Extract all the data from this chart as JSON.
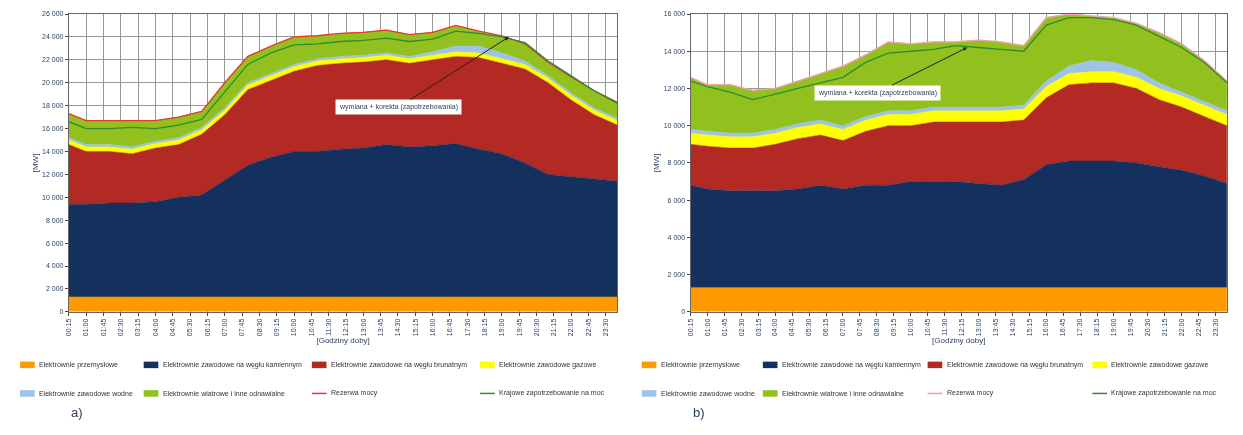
{
  "chart_data": [
    {
      "type": "area",
      "stacked": true,
      "xlabel": "[Godziny doby]",
      "ylabel": "[MW]",
      "grid": true,
      "legend": "bottom",
      "x": [
        0.25,
        1,
        2,
        3,
        4,
        5,
        6,
        7,
        8,
        9,
        10,
        11,
        12,
        13,
        14,
        15,
        16,
        17,
        18,
        19,
        20,
        21,
        22,
        23,
        24
      ],
      "xlim": [
        0.25,
        24
      ],
      "xticks": [
        {
          "value": 0.25,
          "label": "00:15"
        },
        {
          "value": 1,
          "label": "01:00"
        },
        {
          "value": 1.75,
          "label": "01:45"
        },
        {
          "value": 2.5,
          "label": "02:30"
        },
        {
          "value": 3.25,
          "label": "03:15"
        },
        {
          "value": 4,
          "label": "04:00"
        },
        {
          "value": 4.75,
          "label": "04:45"
        },
        {
          "value": 5.5,
          "label": "05:30"
        },
        {
          "value": 6.25,
          "label": "06:15"
        },
        {
          "value": 7,
          "label": "07:00"
        },
        {
          "value": 7.75,
          "label": "07:45"
        },
        {
          "value": 8.5,
          "label": "08:30"
        },
        {
          "value": 9.25,
          "label": "09:15"
        },
        {
          "value": 10,
          "label": "10:00"
        },
        {
          "value": 10.75,
          "label": "10:45"
        },
        {
          "value": 11.5,
          "label": "11:30"
        },
        {
          "value": 12.25,
          "label": "12:15"
        },
        {
          "value": 13,
          "label": "13:00"
        },
        {
          "value": 13.75,
          "label": "13:45"
        },
        {
          "value": 14.5,
          "label": "14:30"
        },
        {
          "value": 15.25,
          "label": "15:15"
        },
        {
          "value": 16,
          "label": "16:00"
        },
        {
          "value": 16.75,
          "label": "16:45"
        },
        {
          "value": 17.5,
          "label": "17:30"
        },
        {
          "value": 18.25,
          "label": "18:15"
        },
        {
          "value": 19,
          "label": "19:00"
        },
        {
          "value": 19.75,
          "label": "19:45"
        },
        {
          "value": 20.5,
          "label": "20:30"
        },
        {
          "value": 21.25,
          "label": "21:15"
        },
        {
          "value": 22,
          "label": "22:00"
        },
        {
          "value": 22.75,
          "label": "22:45"
        },
        {
          "value": 23.5,
          "label": "23:30"
        }
      ],
      "ylim": [
        0,
        26000
      ],
      "yticks": [
        0,
        {
          "value": 2000,
          "label": "2 000"
        },
        {
          "value": 4000,
          "label": "4 000"
        },
        {
          "value": 6000,
          "label": "6 000"
        },
        {
          "value": 8000,
          "label": "8 000"
        },
        {
          "value": 10000,
          "label": "10 000"
        },
        {
          "value": 12000,
          "label": "12 000"
        },
        {
          "value": 14000,
          "label": "14 000"
        },
        {
          "value": 16000,
          "label": "16 000"
        },
        {
          "value": 18000,
          "label": "18 000"
        },
        {
          "value": 20000,
          "label": "20 000"
        },
        {
          "value": 22000,
          "label": "22 000"
        },
        {
          "value": 24000,
          "label": "24 000"
        },
        {
          "value": 26000,
          "label": "26 000"
        }
      ],
      "series": [
        {
          "name": "Elektrownie przemysłowe",
          "color": "#ff9900",
          "values": [
            1300,
            1300,
            1300,
            1300,
            1300,
            1300,
            1300,
            1300,
            1300,
            1300,
            1300,
            1300,
            1300,
            1300,
            1300,
            1300,
            1300,
            1300,
            1300,
            1300,
            1300,
            1300,
            1300,
            1300,
            1300
          ]
        },
        {
          "name": "Elektrownie zawodowe na węglu kamiennym",
          "color": "#14305e",
          "values": [
            8100,
            8100,
            8200,
            8200,
            8300,
            8700,
            8900,
            10200,
            11500,
            12200,
            12700,
            12700,
            12900,
            13000,
            13300,
            13100,
            13200,
            13400,
            12900,
            12500,
            11700,
            10700,
            10500,
            10300,
            10100
          ]
        },
        {
          "name": "Elektrownie zawodowe na węglu brunatnym",
          "color": "#b22a23",
          "values": [
            5200,
            4600,
            4500,
            4300,
            4700,
            4600,
            5300,
            5700,
            6600,
            6700,
            7000,
            7500,
            7500,
            7500,
            7400,
            7300,
            7500,
            7600,
            8000,
            7900,
            8200,
            8000,
            6700,
            5600,
            4900
          ]
        },
        {
          "name": "Elektrownie zawodowe gazowe",
          "color": "#ffff00",
          "values": [
            400,
            400,
            400,
            400,
            400,
            400,
            400,
            400,
            400,
            400,
            400,
            400,
            400,
            400,
            400,
            400,
            400,
            400,
            400,
            400,
            400,
            400,
            400,
            400,
            400
          ]
        },
        {
          "name": "Elektrownie zawodowe wodne",
          "color": "#9dc3e6",
          "values": [
            200,
            200,
            200,
            200,
            200,
            200,
            200,
            200,
            200,
            200,
            200,
            200,
            200,
            200,
            200,
            200,
            300,
            500,
            600,
            500,
            300,
            200,
            200,
            200,
            200
          ]
        },
        {
          "name": "Elektrownie wiatrowe i inne odnawialne",
          "color": "#92c01f",
          "values": [
            2100,
            2100,
            2100,
            2300,
            1800,
            1800,
            1400,
            2200,
            2300,
            2400,
            2400,
            2000,
            2000,
            2000,
            2000,
            1900,
            1700,
            1800,
            1300,
            1400,
            1500,
            1200,
            1400,
            1500,
            1400
          ]
        },
        {
          "name": "Rezerwa mocy",
          "type": "line",
          "color": "#e8382b",
          "values": [
            17300,
            16700,
            16700,
            16700,
            16700,
            17000,
            17500,
            20000,
            22300,
            23200,
            24000,
            24100,
            24300,
            24400,
            24600,
            24200,
            24400,
            25000,
            24500,
            24100,
            23400,
            21800,
            20500,
            19300,
            18300
          ]
        },
        {
          "name": "Krajowe zapotrzebowanie na moc",
          "type": "line",
          "color": "#2e8b2e",
          "values": [
            16600,
            16000,
            16000,
            16100,
            16000,
            16300,
            16800,
            19200,
            21600,
            22600,
            23300,
            23400,
            23600,
            23700,
            23900,
            23600,
            23800,
            24500,
            24300,
            24000,
            23500,
            21900,
            20600,
            19300,
            18200
          ]
        }
      ],
      "annotations": [
        {
          "text": "wymiana + korekta (zapotrzebowania)",
          "x": 19.3,
          "y": 24000
        },
        "a)"
      ]
    },
    {
      "type": "area",
      "stacked": true,
      "xlabel": "[Godziny doby]",
      "ylabel": "[MW]",
      "grid": true,
      "legend": "bottom",
      "x": [
        0.25,
        1,
        2,
        3,
        4,
        5,
        6,
        7,
        8,
        9,
        10,
        11,
        12,
        13,
        14,
        15,
        16,
        17,
        18,
        19,
        20,
        21,
        22,
        23,
        24
      ],
      "xlim": [
        0.25,
        24
      ],
      "xticks": [
        {
          "value": 0.25,
          "label": "00:15"
        },
        {
          "value": 1,
          "label": "01:00"
        },
        {
          "value": 1.75,
          "label": "01:45"
        },
        {
          "value": 2.5,
          "label": "02:30"
        },
        {
          "value": 3.25,
          "label": "03:15"
        },
        {
          "value": 4,
          "label": "04:00"
        },
        {
          "value": 4.75,
          "label": "04:45"
        },
        {
          "value": 5.5,
          "label": "05:30"
        },
        {
          "value": 6.25,
          "label": "06:15"
        },
        {
          "value": 7,
          "label": "07:00"
        },
        {
          "value": 7.75,
          "label": "07:45"
        },
        {
          "value": 8.5,
          "label": "08:30"
        },
        {
          "value": 9.25,
          "label": "09:15"
        },
        {
          "value": 10,
          "label": "10:00"
        },
        {
          "value": 10.75,
          "label": "10:45"
        },
        {
          "value": 11.5,
          "label": "11:30"
        },
        {
          "value": 12.25,
          "label": "12:15"
        },
        {
          "value": 13,
          "label": "13:00"
        },
        {
          "value": 13.75,
          "label": "13:45"
        },
        {
          "value": 14.5,
          "label": "14:30"
        },
        {
          "value": 15.25,
          "label": "15:15"
        },
        {
          "value": 16,
          "label": "16:00"
        },
        {
          "value": 16.75,
          "label": "16:45"
        },
        {
          "value": 17.5,
          "label": "17:30"
        },
        {
          "value": 18.25,
          "label": "18:15"
        },
        {
          "value": 19,
          "label": "19:00"
        },
        {
          "value": 19.75,
          "label": "19:45"
        },
        {
          "value": 20.5,
          "label": "20:30"
        },
        {
          "value": 21.25,
          "label": "21:15"
        },
        {
          "value": 22,
          "label": "22:00"
        },
        {
          "value": 22.75,
          "label": "22:45"
        },
        {
          "value": 23.5,
          "label": "23:30"
        }
      ],
      "ylim": [
        0,
        16000
      ],
      "yticks": [
        0,
        {
          "value": 2000,
          "label": "2 000"
        },
        {
          "value": 4000,
          "label": "4 000"
        },
        {
          "value": 6000,
          "label": "6 000"
        },
        {
          "value": 8000,
          "label": "8 000"
        },
        {
          "value": 10000,
          "label": "10 000"
        },
        {
          "value": 12000,
          "label": "12 000"
        },
        {
          "value": 14000,
          "label": "14 000"
        },
        {
          "value": 16000,
          "label": "16 000"
        }
      ],
      "series": [
        {
          "name": "Elektrownie przemysłowe",
          "color": "#ff9900",
          "values": [
            1300,
            1300,
            1300,
            1300,
            1300,
            1300,
            1300,
            1300,
            1300,
            1300,
            1300,
            1300,
            1300,
            1300,
            1300,
            1300,
            1300,
            1300,
            1300,
            1300,
            1300,
            1300,
            1300,
            1300,
            1300
          ]
        },
        {
          "name": "Elektrownie zawodowe na węglu kamiennym",
          "color": "#14305e",
          "values": [
            5500,
            5300,
            5200,
            5200,
            5200,
            5300,
            5500,
            5300,
            5500,
            5500,
            5700,
            5700,
            5700,
            5600,
            5500,
            5800,
            6600,
            6800,
            6800,
            6800,
            6700,
            6500,
            6300,
            6000,
            5600
          ]
        },
        {
          "name": "Elektrownie zawodowe na węglu brunatnym",
          "color": "#b22a23",
          "values": [
            2200,
            2300,
            2300,
            2300,
            2500,
            2700,
            2700,
            2600,
            2900,
            3200,
            3000,
            3200,
            3200,
            3300,
            3400,
            3200,
            3600,
            4100,
            4200,
            4200,
            4000,
            3600,
            3400,
            3200,
            3100
          ]
        },
        {
          "name": "Elektrownie zawodowe gazowe",
          "color": "#ffff00",
          "values": [
            600,
            600,
            600,
            600,
            600,
            600,
            600,
            600,
            600,
            600,
            600,
            600,
            600,
            600,
            600,
            600,
            600,
            600,
            600,
            600,
            600,
            600,
            600,
            600,
            600
          ]
        },
        {
          "name": "Elektrownie zawodowe wodne",
          "color": "#9dc3e6",
          "values": [
            200,
            200,
            200,
            200,
            200,
            200,
            200,
            200,
            200,
            200,
            200,
            200,
            200,
            200,
            200,
            200,
            300,
            400,
            600,
            500,
            400,
            300,
            200,
            200,
            200
          ]
        },
        {
          "name": "Elektrownie wiatrowe i inne odnawialne",
          "color": "#92c01f",
          "values": [
            2800,
            2500,
            2600,
            2300,
            2200,
            2300,
            2500,
            3200,
            3300,
            3700,
            3600,
            3500,
            3500,
            3600,
            3500,
            3200,
            3400,
            2800,
            2400,
            2400,
            2500,
            2700,
            2600,
            2200,
            1600
          ]
        },
        {
          "name": "Rezerwa mocy",
          "type": "line",
          "color": "#f4a0b0",
          "values": [
            12600,
            12200,
            12200,
            11900,
            12000,
            12400,
            12800,
            13200,
            13800,
            14500,
            14400,
            14500,
            14500,
            14600,
            14500,
            14300,
            15800,
            16000,
            15900,
            15800,
            15500,
            15000,
            14400,
            13500,
            12400
          ]
        },
        {
          "name": "Krajowe zapotrzebowanie na moc",
          "type": "line",
          "color": "#2e8b2e",
          "values": [
            12400,
            12100,
            11800,
            11400,
            11700,
            12000,
            12300,
            12600,
            13400,
            13900,
            14000,
            14100,
            14300,
            14200,
            14100,
            14000,
            15400,
            15800,
            15800,
            15700,
            15400,
            14800,
            14200,
            13400,
            12300
          ]
        }
      ],
      "annotations": [
        {
          "text": "wymiana + korekta (zapotrzebowania)",
          "x": 12.5,
          "y": 14200
        },
        "b)"
      ]
    }
  ]
}
